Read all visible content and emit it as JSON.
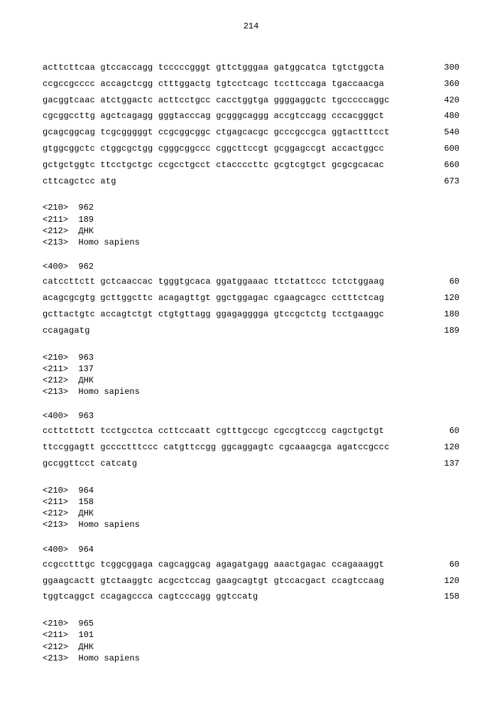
{
  "page_number": "214",
  "sequences": [
    {
      "rows": [
        {
          "text": "acttcttcaa gtccaccagg tcccccgggt gttctgggaa gatggcatca tgtctggcta",
          "num": "300"
        },
        {
          "text": "ccgccgcccc accagctcgg ctttggactg tgtcctcagc tccttccaga tgaccaacga",
          "num": "360"
        },
        {
          "text": "gacggtcaac atctggactc acttcctgcc cacctggtga ggggaggctc tgcccccaggc",
          "num": "420"
        },
        {
          "text": "cgcggccttg agctcagagg gggtacccag gcgggcaggg accgtccagg cccacgggct",
          "num": "480"
        },
        {
          "text": "gcagcggcag tcgcgggggt ccgcggcggc ctgagcacgc gcccgccgca ggtactttcct",
          "num": "540"
        },
        {
          "text": "gtggcggctc ctggcgctgg cgggcggccc cggcttccgt gcggagccgt accactggcc",
          "num": "600"
        },
        {
          "text": "gctgctggtc ttcctgctgc ccgcctgcct ctaccccttc gcgtcgtgct gcgcgcacac",
          "num": "660"
        },
        {
          "text": "cttcagctcc atg",
          "num": "673"
        }
      ]
    },
    {
      "headers": [
        "<210>  962",
        "<211>  189",
        "<212>  ДНК",
        "<213>  Homo sapiens"
      ],
      "entry": "<400>  962",
      "rows": [
        {
          "text": "catccttctt gctcaaccac tgggtgcaca ggatggaaac ttctattccc tctctggaag",
          "num": "60"
        },
        {
          "text": "acagcgcgtg gcttggcttc acagagttgt ggctggagac cgaagcagcc cctttctcag",
          "num": "120"
        },
        {
          "text": "gcttactgtc accagtctgt ctgtgttagg ggagagggga gtccgctctg tcctgaaggc",
          "num": "180"
        },
        {
          "text": "ccagagatg",
          "num": "189"
        }
      ]
    },
    {
      "headers": [
        "<210>  963",
        "<211>  137",
        "<212>  ДНК",
        "<213>  Homo sapiens"
      ],
      "entry": "<400>  963",
      "rows": [
        {
          "text": "ccttcttctt tcctgcctca ccttccaatt cgtttgccgc cgccgtcccg cagctgctgt",
          "num": "60"
        },
        {
          "text": "ttccggagtt gcccctttccc catgttccgg ggcaggagtc cgcaaagcga agatccgccc",
          "num": "120"
        },
        {
          "text": "gccggttcct catcatg",
          "num": "137"
        }
      ]
    },
    {
      "headers": [
        "<210>  964",
        "<211>  158",
        "<212>  ДНК",
        "<213>  Homo sapiens"
      ],
      "entry": "<400>  964",
      "rows": [
        {
          "text": "ccgcctttgc tcggcggaga cagcaggcag agagatgagg aaactgagac ccagaaaggt",
          "num": "60"
        },
        {
          "text": "ggaagcactt gtctaaggtc acgcctccag gaagcagtgt gtccacgact ccagtccaag",
          "num": "120"
        },
        {
          "text": "tggtcaggct ccagagccca cagtcccagg ggtccatg",
          "num": "158"
        }
      ]
    },
    {
      "headers": [
        "<210>  965",
        "<211>  101",
        "<212>  ДНК",
        "<213>  Homo sapiens"
      ]
    }
  ]
}
